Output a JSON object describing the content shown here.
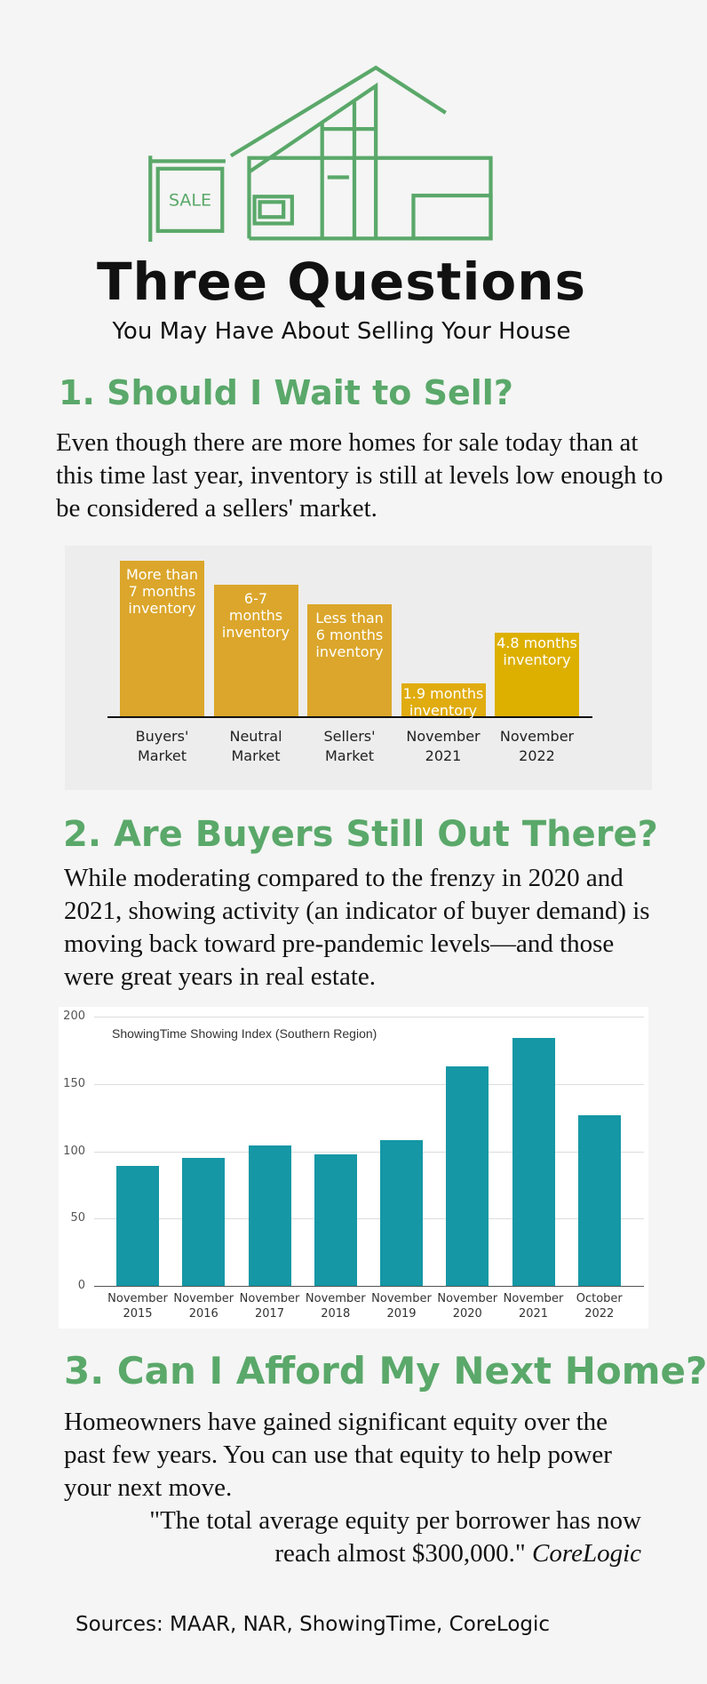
{
  "header": {
    "sign": "SALE",
    "title": "Three Questions",
    "subtitle": "You May Have About Selling Your House"
  },
  "sections": [
    {
      "heading": "1. Should I Wait to Sell?",
      "text": "Even though there are more homes for sale today than at this time last year, inventory is still at levels low enough to be considered a sellers' market."
    },
    {
      "heading": "2. Are Buyers Still Out There?",
      "text": "While moderating compared to the frenzy in 2020 and 2021, showing activity (an indicator of buyer demand) is moving back toward pre-pandemic levels—and those were great years in real estate."
    },
    {
      "heading": "3. Can I Afford My Next Home?",
      "text": "Homeowners have gained significant equity over the past few years. You can use that equity to help power your next move.",
      "quote": "\"The total average equity per borrower has now reach almost $300,000.\"",
      "quote_source": "CoreLogic"
    }
  ],
  "chart_data": [
    {
      "type": "bar",
      "categories": [
        "Buyers' Market",
        "Neutral Market",
        "Sellers' Market",
        "November 2021",
        "November 2022"
      ],
      "values": [
        8.9,
        7.5,
        6.4,
        1.9,
        4.8
      ],
      "bar_labels": [
        "More than 7 months inventory",
        "6-7 months inventory",
        "Less than 6 months inventory",
        "1.9 months inventory",
        "4.8 months inventory"
      ],
      "colors": [
        "#dba62b",
        "#dba62b",
        "#dba62b",
        "#e0ac0f",
        "#ddb000"
      ],
      "ylim": [
        0,
        9.5
      ]
    },
    {
      "type": "bar",
      "title": "ShowingTime Showing Index (Southern Region)",
      "categories": [
        "November 2015",
        "November 2016",
        "November 2017",
        "November 2018",
        "November 2019",
        "November 2020",
        "November 2021",
        "October 2022"
      ],
      "values": [
        89,
        95,
        104,
        98,
        108,
        163,
        184,
        127
      ],
      "color": "#1597a5",
      "ylim": [
        0,
        200
      ],
      "yticks": [
        0,
        50,
        100,
        150,
        200
      ],
      "grid": true
    }
  ],
  "footer": "Sources: MAAR, NAR, ShowingTime, CoreLogic"
}
